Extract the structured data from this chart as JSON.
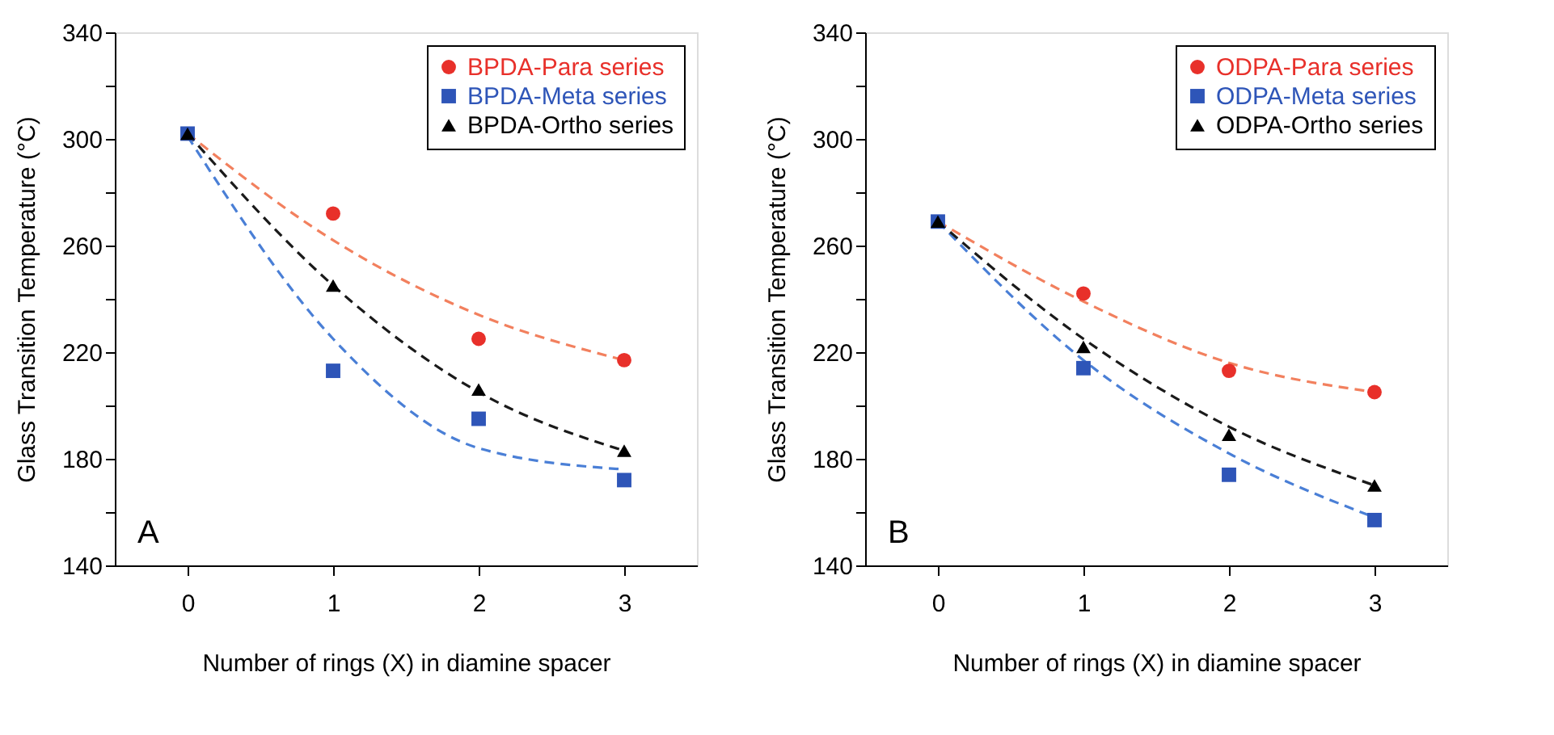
{
  "chart_data": [
    {
      "type": "scatter",
      "xlabel": "Number of rings (X) in diamine spacer",
      "ylabel": "Glass Transition Temperature (°C)",
      "annotations": [
        "A"
      ],
      "x": [
        0,
        1,
        2,
        3
      ],
      "xlim": [
        -0.5,
        3.5
      ],
      "xticks": [
        0,
        1,
        2,
        3
      ],
      "ylim": [
        140,
        340
      ],
      "yticks": [
        140,
        {
          "value": 160,
          "label": null
        },
        180,
        {
          "value": 200,
          "label": null
        },
        220,
        {
          "value": 240,
          "label": null
        },
        260,
        {
          "value": 280,
          "label": null
        },
        300,
        {
          "value": 320,
          "label": null
        },
        340
      ],
      "grid": false,
      "legend": "top right",
      "series": [
        {
          "type": "line",
          "color": "#f2805e",
          "values": [
            302,
            262,
            234,
            217
          ],
          "line_style": "dashed",
          "marker": "none"
        },
        {
          "type": "line",
          "color": "#4a7fd6",
          "values": [
            301,
            225,
            184,
            176
          ],
          "line_style": "dashed",
          "marker": "none"
        },
        {
          "type": "line",
          "color": "#1a1a1a",
          "values": [
            302,
            245,
            205,
            183
          ],
          "line_style": "dashed",
          "marker": "none"
        },
        {
          "name": "BPDA-Para series",
          "color": "#e8302a",
          "values": [
            null,
            272,
            225,
            217
          ],
          "marker": "circle"
        },
        {
          "name": "BPDA-Meta series",
          "color": "#2e55b8",
          "values": [
            302,
            213,
            195,
            172
          ],
          "marker": "square"
        },
        {
          "name": "BPDA-Ortho series",
          "color": "#000000",
          "values": [
            302,
            245,
            206,
            183
          ],
          "marker": "triangle"
        }
      ]
    },
    {
      "type": "scatter",
      "xlabel": "Number of rings (X) in diamine spacer",
      "ylabel": "Glass Transition Temperature (°C)",
      "annotations": [
        "B"
      ],
      "x": [
        0,
        1,
        2,
        3
      ],
      "xlim": [
        -0.5,
        3.5
      ],
      "xticks": [
        0,
        1,
        2,
        3
      ],
      "ylim": [
        140,
        340
      ],
      "yticks": [
        140,
        {
          "value": 160,
          "label": null
        },
        180,
        {
          "value": 200,
          "label": null
        },
        220,
        {
          "value": 240,
          "label": null
        },
        260,
        {
          "value": 280,
          "label": null
        },
        300,
        {
          "value": 320,
          "label": null
        },
        340
      ],
      "grid": false,
      "legend": "top right",
      "series": [
        {
          "type": "line",
          "color": "#f2805e",
          "values": [
            269,
            239,
            216,
            205
          ],
          "line_style": "dashed",
          "marker": "none"
        },
        {
          "type": "line",
          "color": "#4a7fd6",
          "values": [
            269,
            217,
            182,
            158
          ],
          "line_style": "dashed",
          "marker": "none"
        },
        {
          "type": "line",
          "color": "#1a1a1a",
          "values": [
            269,
            225,
            192,
            170
          ],
          "line_style": "dashed",
          "marker": "none"
        },
        {
          "name": "ODPA-Para series",
          "color": "#e8302a",
          "values": [
            null,
            242,
            213,
            205
          ],
          "marker": "circle"
        },
        {
          "name": "ODPA-Meta series",
          "color": "#2e55b8",
          "values": [
            269,
            214,
            174,
            157
          ],
          "marker": "square"
        },
        {
          "name": "ODPA-Ortho series",
          "color": "#000000",
          "values": [
            269,
            222,
            189,
            170
          ],
          "marker": "triangle"
        }
      ]
    }
  ]
}
